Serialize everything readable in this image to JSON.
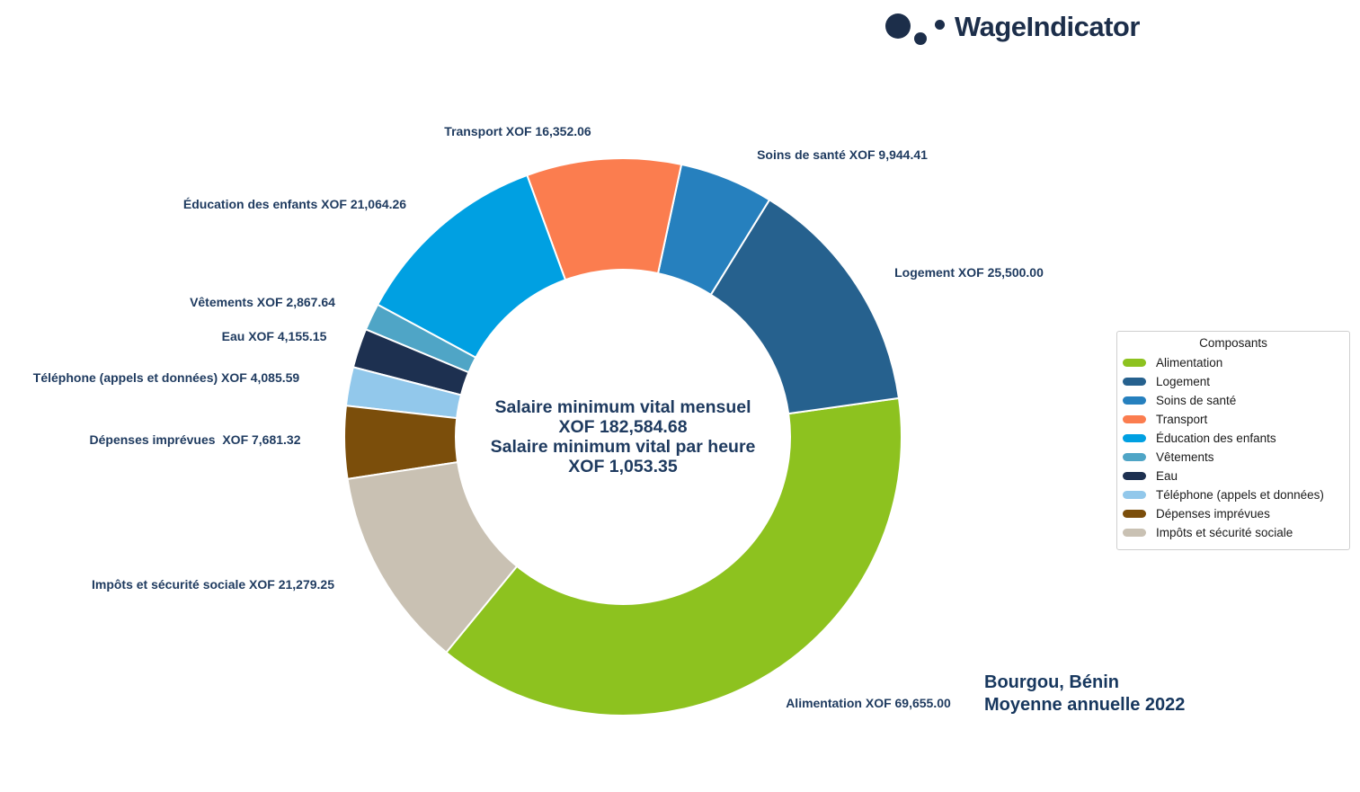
{
  "brand": {
    "name": "WageIndicator",
    "color": "#1c2e4a"
  },
  "chart_title": {
    "line1": "Bourgou, Bénin",
    "line2": "Moyenne annuelle 2022"
  },
  "center_label": {
    "line1": "Salaire minimum vital mensuel",
    "line2": "XOF 182,584.68",
    "line3": "Salaire minimum vital par heure",
    "line4": "XOF 1,053.35"
  },
  "legend": {
    "title": "Composants"
  },
  "chart_data": {
    "type": "pie",
    "donut": true,
    "currency": "XOF",
    "monthly_living_wage": 182584.68,
    "hourly_living_wage": 1053.35,
    "start_angle_deg": 230.66,
    "direction": "counterclockwise",
    "legend_position": "right",
    "label_text_color": "#1e3a5f",
    "slice_border_color": "#ffffff",
    "series": [
      {
        "id": "alimentation",
        "name": "Alimentation",
        "value": 69655.0,
        "color": "#8dc21f",
        "label": "Alimentation XOF 69,655.00"
      },
      {
        "id": "logement",
        "name": "Logement",
        "value": 25500.0,
        "color": "#26618e",
        "label": "Logement XOF 25,500.00"
      },
      {
        "id": "soins-de-sante",
        "name": "Soins de santé",
        "value": 9944.41,
        "color": "#2680be",
        "label": "Soins de santé XOF 9,944.41"
      },
      {
        "id": "transport",
        "name": "Transport",
        "value": 16352.06,
        "color": "#fb7d4f",
        "label": "Transport XOF 16,352.06"
      },
      {
        "id": "education-des-enfants",
        "name": "Éducation des enfants",
        "value": 21064.26,
        "color": "#00a0e2",
        "label": "Éducation des enfants XOF 21,064.26"
      },
      {
        "id": "vetements",
        "name": "Vêtements",
        "value": 2867.64,
        "color": "#4fa5c6",
        "label": "Vêtements XOF 2,867.64"
      },
      {
        "id": "eau",
        "name": "Eau",
        "value": 4155.15,
        "color": "#1d3050",
        "label": "Eau XOF 4,155.15"
      },
      {
        "id": "telephone-appels-et-donnees",
        "name": "Téléphone (appels et données)",
        "value": 4085.59,
        "color": "#92c8eb",
        "label": "Téléphone (appels et données) XOF 4,085.59"
      },
      {
        "id": "depenses-imprevues",
        "name": "Dépenses imprévues",
        "value": 7681.32,
        "color": "#7b4e0b",
        "label": "Dépenses imprévues  XOF 7,681.32"
      },
      {
        "id": "impots-et-securite-sociale",
        "name": "Impôts et sécurité sociale",
        "value": 21279.25,
        "color": "#c9c1b3",
        "label": "Impôts et sécurité sociale XOF 21,279.25"
      }
    ]
  }
}
